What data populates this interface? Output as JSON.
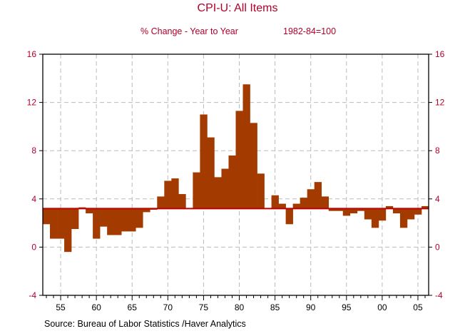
{
  "chart_data": {
    "type": "bar",
    "title": "CPI-U: All Items",
    "subtitle_left": "% Change - Year to Year",
    "subtitle_right": "1982-84=100",
    "source": "Source:  Bureau of Labor Statistics /Haver Analytics",
    "baseline": 3.2,
    "ylim": [
      -4,
      16
    ],
    "yticks": [
      -4,
      0,
      4,
      8,
      12,
      16
    ],
    "xlim": [
      1952.5,
      2006.5
    ],
    "xticks": [
      {
        "value": 1955,
        "label": "55"
      },
      {
        "value": 1960,
        "label": "60"
      },
      {
        "value": 1965,
        "label": "65"
      },
      {
        "value": 1970,
        "label": "70"
      },
      {
        "value": 1975,
        "label": "75"
      },
      {
        "value": 1980,
        "label": "80"
      },
      {
        "value": 1985,
        "label": "85"
      },
      {
        "value": 1990,
        "label": "90"
      },
      {
        "value": 1995,
        "label": "95"
      },
      {
        "value": 2000,
        "label": "00"
      },
      {
        "value": 2005,
        "label": "05"
      }
    ],
    "grid": true,
    "x": [
      1953,
      1954,
      1955,
      1956,
      1957,
      1958,
      1959,
      1960,
      1961,
      1962,
      1963,
      1964,
      1965,
      1966,
      1967,
      1968,
      1969,
      1970,
      1971,
      1972,
      1973,
      1974,
      1975,
      1976,
      1977,
      1978,
      1979,
      1980,
      1981,
      1982,
      1983,
      1984,
      1985,
      1986,
      1987,
      1988,
      1989,
      1990,
      1991,
      1992,
      1993,
      1994,
      1995,
      1996,
      1997,
      1998,
      1999,
      2000,
      2001,
      2002,
      2003,
      2004,
      2005,
      2006
    ],
    "values": [
      1.9,
      0.7,
      0.7,
      -0.4,
      1.5,
      3.3,
      2.8,
      0.7,
      1.7,
      1.0,
      1.0,
      1.3,
      1.3,
      1.6,
      2.9,
      3.1,
      4.2,
      5.5,
      5.7,
      4.4,
      3.2,
      6.2,
      11.0,
      9.1,
      5.8,
      6.5,
      7.6,
      11.3,
      13.5,
      10.3,
      6.1,
      3.2,
      4.3,
      3.6,
      1.9,
      3.6,
      4.1,
      4.8,
      5.4,
      4.2,
      3.0,
      3.0,
      2.6,
      2.8,
      3.0,
      2.3,
      1.6,
      2.2,
      3.4,
      2.8,
      1.6,
      2.3,
      2.7,
      3.4
    ],
    "colors": {
      "bar": "#a33a00",
      "baseline": "#c00000",
      "axis_text": "#b0002a",
      "grid": "#bbbbbb"
    }
  }
}
